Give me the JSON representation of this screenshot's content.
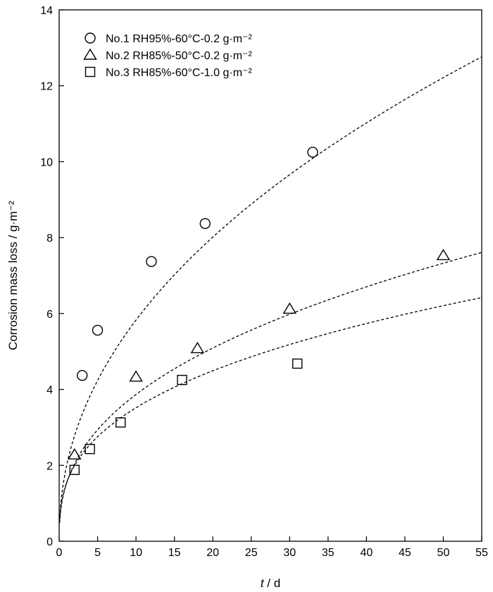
{
  "chart_data": {
    "type": "scatter",
    "xlabel": "t / d",
    "ylabel": "Corrosion mass loss / g·m⁻²",
    "xlim": [
      0,
      55
    ],
    "ylim": [
      0,
      14
    ],
    "xticks": [
      0,
      5,
      10,
      15,
      20,
      25,
      30,
      35,
      40,
      45,
      50,
      55
    ],
    "yticks": [
      0,
      2,
      4,
      6,
      8,
      10,
      12,
      14
    ],
    "grid": false,
    "legend_position": "top-left",
    "series": [
      {
        "name": "No.1 RH95%-60°C-0.2 g·m⁻²",
        "marker": "circle",
        "points": [
          [
            3,
            4.37
          ],
          [
            5,
            5.56
          ],
          [
            12,
            7.37
          ],
          [
            19,
            8.37
          ],
          [
            33,
            10.25
          ]
        ],
        "fit": {
          "model": "power",
          "a": 2.02,
          "b": 0.46
        }
      },
      {
        "name": "No.2 RH85%-50°C-0.2 g·m⁻²",
        "marker": "triangle",
        "points": [
          [
            2,
            2.28
          ],
          [
            10,
            4.33
          ],
          [
            18,
            5.08
          ],
          [
            30,
            6.12
          ],
          [
            50,
            7.53
          ]
        ],
        "fit": {
          "model": "power",
          "a": 1.55,
          "b": 0.397
        }
      },
      {
        "name": "No.3 RH85%-60°C-1.0 g·m⁻²",
        "marker": "square",
        "points": [
          [
            2,
            1.88
          ],
          [
            4,
            2.43
          ],
          [
            8,
            3.13
          ],
          [
            16,
            4.25
          ],
          [
            31,
            4.68
          ]
        ],
        "fit": {
          "model": "power",
          "a": 1.56,
          "b": 0.353
        }
      }
    ]
  }
}
